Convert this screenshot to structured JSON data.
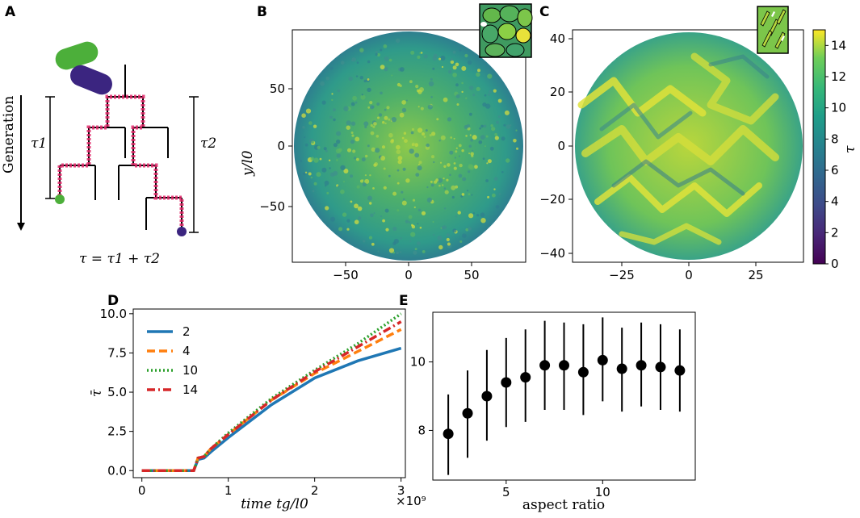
{
  "panels": {
    "A": {
      "label": "A",
      "generation_label": "Generation",
      "tau1": "τ1",
      "tau2": "τ2",
      "formula": "τ = τ1 + τ2"
    },
    "B": {
      "label": "B"
    },
    "C": {
      "label": "C"
    },
    "D": {
      "label": "D"
    },
    "E": {
      "label": "E"
    }
  },
  "colorbar": {
    "label": "τ",
    "ticks": [
      "0",
      "2",
      "4",
      "6",
      "8",
      "10",
      "12",
      "14"
    ],
    "min": 0,
    "max": 15
  },
  "colors": {
    "series_2": "#1f77b4",
    "series_4": "#ff7f0e",
    "series_10": "#2ca02c",
    "series_14": "#d62728",
    "cell_green": "#4caf3a",
    "cell_purple": "#3b2580",
    "lineage": "#e0286a",
    "map_mid": "#2f9a8a",
    "map_high": "#c6d83a"
  },
  "chart_data": [
    {
      "panel": "B",
      "type": "heatmap",
      "title": "",
      "xlabel": "",
      "ylabel": "y/l0",
      "xlim": [
        -92,
        92
      ],
      "ylim": [
        -92,
        92
      ],
      "xticks": [
        "−50",
        "0",
        "50"
      ],
      "yticks": [
        "50",
        "0",
        "−50"
      ]
    },
    {
      "panel": "C",
      "type": "heatmap",
      "title": "",
      "xlabel": "",
      "ylabel": "",
      "xlim": [
        -43,
        43
      ],
      "ylim": [
        -43,
        43
      ],
      "xticks": [
        "−25",
        "0",
        "25"
      ],
      "yticks": [
        "40",
        "20",
        "0",
        "−20",
        "−40"
      ]
    },
    {
      "panel": "D",
      "type": "line",
      "xlabel": "time tg/l0",
      "ylabel": "τ̄",
      "x_multiplier": "×10⁹",
      "xlim": [
        -0.1,
        3.05
      ],
      "ylim": [
        -0.45,
        10.3
      ],
      "xticks": [
        "0",
        "1",
        "2",
        "3"
      ],
      "yticks": [
        "0.0",
        "2.5",
        "5.0",
        "7.5",
        "10.0"
      ],
      "series": [
        {
          "name": "2",
          "x": [
            0,
            0.6,
            0.65,
            0.72,
            0.8,
            1.0,
            1.5,
            2.0,
            2.5,
            3.0
          ],
          "values": [
            0,
            0,
            0.7,
            0.8,
            1.2,
            2.1,
            4.2,
            5.9,
            7.0,
            7.8
          ]
        },
        {
          "name": "4",
          "x": [
            0,
            0.6,
            0.65,
            0.72,
            0.8,
            1.0,
            1.5,
            2.0,
            2.5,
            3.0
          ],
          "values": [
            0,
            0,
            0.8,
            0.9,
            1.4,
            2.3,
            4.5,
            6.2,
            7.6,
            9.0
          ]
        },
        {
          "name": "10",
          "x": [
            0,
            0.6,
            0.65,
            0.72,
            0.8,
            1.0,
            1.5,
            2.0,
            2.5,
            3.0
          ],
          "values": [
            0,
            0,
            0.8,
            0.9,
            1.4,
            2.4,
            4.6,
            6.4,
            8.1,
            10.0
          ]
        },
        {
          "name": "14",
          "x": [
            0,
            0.6,
            0.65,
            0.72,
            0.8,
            1.0,
            1.5,
            2.0,
            2.5,
            3.0
          ],
          "values": [
            0,
            0,
            0.8,
            0.9,
            1.4,
            2.3,
            4.5,
            6.3,
            7.9,
            9.5
          ]
        }
      ]
    },
    {
      "panel": "E",
      "type": "scatter",
      "xlabel": "aspect ratio",
      "ylabel": "",
      "xlim": [
        1.2,
        14.8
      ],
      "ylim": [
        6.55,
        11.45
      ],
      "xticks": [
        "5",
        "10"
      ],
      "yticks": [
        "8",
        "10"
      ],
      "x": [
        2,
        3,
        4,
        5,
        6,
        7,
        8,
        9,
        10,
        11,
        12,
        13,
        14
      ],
      "values": [
        7.9,
        8.5,
        9.0,
        9.4,
        9.55,
        9.9,
        9.9,
        9.7,
        10.05,
        9.8,
        9.9,
        9.85,
        9.75
      ],
      "err_low": [
        6.7,
        7.2,
        7.7,
        8.1,
        8.25,
        8.6,
        8.6,
        8.45,
        8.85,
        8.55,
        8.7,
        8.6,
        8.55
      ],
      "err_high": [
        9.05,
        9.75,
        10.35,
        10.7,
        10.95,
        11.2,
        11.15,
        11.1,
        11.3,
        11.0,
        11.15,
        11.1,
        10.95
      ]
    }
  ]
}
